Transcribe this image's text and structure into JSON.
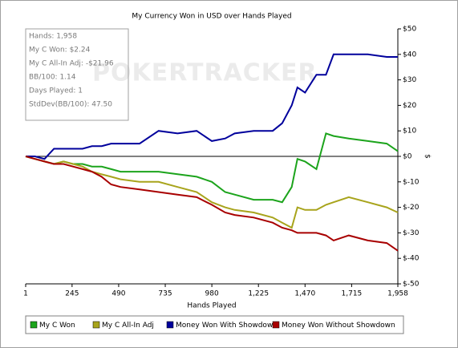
{
  "chart_data": {
    "type": "line",
    "title": "My Currency Won in USD over Hands Played",
    "xlabel": "Hands Played",
    "ylabel": "$",
    "watermark": "POKERTRACKER",
    "stats": [
      "Hands: 1,958",
      "My C Won: $2.24",
      "My C All-In Adj: -$21.96",
      "BB/100: 1.14",
      "Days Played: 1",
      "StdDev(BB/100): 47.50"
    ],
    "x": [
      1,
      50,
      100,
      150,
      200,
      250,
      300,
      350,
      400,
      450,
      500,
      600,
      700,
      800,
      900,
      980,
      1050,
      1100,
      1200,
      1300,
      1350,
      1400,
      1430,
      1470,
      1530,
      1580,
      1620,
      1700,
      1800,
      1900,
      1958
    ],
    "series": [
      {
        "name": "My C Won",
        "color": "#1ca41c",
        "values": [
          0,
          -1,
          -2,
          -3,
          -2,
          -3,
          -3,
          -4,
          -4,
          -5,
          -6,
          -6,
          -6,
          -7,
          -8,
          -10,
          -14,
          -15,
          -17,
          -17,
          -18,
          -12,
          -1,
          -2,
          -5,
          9,
          8,
          7,
          6,
          5,
          2
        ]
      },
      {
        "name": "My C All-In Adj",
        "color": "#a8a41c",
        "values": [
          0,
          -1,
          -2,
          -3,
          -2,
          -3,
          -4,
          -6,
          -7,
          -8,
          -9,
          -10,
          -10,
          -12,
          -14,
          -18,
          -20,
          -21,
          -22,
          -24,
          -26,
          -28,
          -20,
          -21,
          -21,
          -19,
          -18,
          -16,
          -18,
          -20,
          -22
        ]
      },
      {
        "name": "Money Won With Showdown",
        "color": "#00009c",
        "values": [
          0,
          0,
          -1,
          3,
          3,
          3,
          3,
          4,
          4,
          5,
          5,
          5,
          10,
          9,
          10,
          6,
          7,
          9,
          10,
          10,
          13,
          20,
          27,
          25,
          32,
          32,
          40,
          40,
          40,
          39,
          39
        ]
      },
      {
        "name": "Money Won Without Showdown",
        "color": "#a80000",
        "values": [
          0,
          -1,
          -2,
          -3,
          -3,
          -4,
          -5,
          -6,
          -8,
          -11,
          -12,
          -13,
          -14,
          -15,
          -16,
          -19,
          -22,
          -23,
          -24,
          -26,
          -28,
          -29,
          -30,
          -30,
          -30,
          -31,
          -33,
          -31,
          -33,
          -34,
          -37
        ]
      }
    ],
    "xlim": [
      1,
      1958
    ],
    "xticks": [
      1,
      245,
      490,
      735,
      980,
      {
        "value": 1225,
        "label": "1,225"
      },
      {
        "value": 1470,
        "label": "1,470"
      },
      {
        "value": 1715,
        "label": "1,715"
      },
      {
        "value": 1958,
        "label": "1,958"
      }
    ],
    "ylim": [
      -50,
      50
    ],
    "yticks": [
      {
        "value": 50,
        "label": "$50"
      },
      {
        "value": 40,
        "label": "$40"
      },
      {
        "value": 30,
        "label": "$30"
      },
      {
        "value": 20,
        "label": "$20"
      },
      {
        "value": 10,
        "label": "$10"
      },
      {
        "value": 0,
        "label": "$0"
      },
      {
        "value": -10,
        "label": "$-10"
      },
      {
        "value": -20,
        "label": "$-20"
      },
      {
        "value": -30,
        "label": "$-30"
      },
      {
        "value": -40,
        "label": "$-40"
      },
      {
        "value": -50,
        "label": "$-50"
      }
    ],
    "legend": "bottom"
  }
}
